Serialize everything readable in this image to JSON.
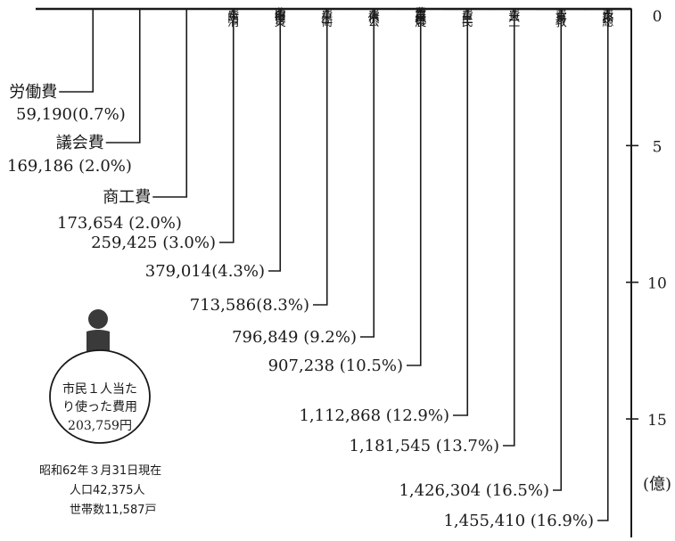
{
  "chart_data": {
    "type": "bar",
    "orientation": "vertical-hanging",
    "unit": "(億)",
    "ylim": [
      0,
      15
    ],
    "ticks": [
      0,
      5,
      10,
      15
    ],
    "bar_color": "#e6e6e6",
    "categories": [
      {
        "name": "労働費",
        "vertical_label": "",
        "value": 59190,
        "label": "59,190(0.7%)",
        "leader_label": "労働費"
      },
      {
        "name": "議会費",
        "vertical_label": "",
        "value": 169186,
        "label": "169,186 (2.0%)",
        "leader_label": "議会費"
      },
      {
        "name": "商工費",
        "vertical_label": "",
        "value": 173654,
        "label": "173,654 (2.0%)",
        "leader_label": "商工費"
      },
      {
        "name": "消防費",
        "vertical_label": "消防費",
        "value": 259425,
        "label": "259,425 (3.0%)",
        "leader_label": ""
      },
      {
        "name": "災害復旧費",
        "vertical_label": "災害復旧費",
        "value": 379014,
        "label": "379,014(4.3%)",
        "leader_label": ""
      },
      {
        "name": "衛生費",
        "vertical_label": "衛生費",
        "value": 713586,
        "label": "713,586(8.3%)",
        "leader_label": ""
      },
      {
        "name": "公債費",
        "vertical_label": "公債費",
        "value": 796849,
        "label": "796,849 (9.2%)",
        "leader_label": ""
      },
      {
        "name": "農林水産業費",
        "vertical_label": "農林水産業費",
        "value": 907238,
        "label": "907,238 (10.5%)",
        "leader_label": ""
      },
      {
        "name": "民生費",
        "vertical_label": "民生費",
        "value": 1112868,
        "label": "1,112,868 (12.9%)",
        "leader_label": ""
      },
      {
        "name": "土木費",
        "vertical_label": "土木費",
        "value": 1181545,
        "label": "1,181,545 (13.7%)",
        "leader_label": ""
      },
      {
        "name": "教育費",
        "vertical_label": "教育費",
        "value": 1426304,
        "label": "1,426,304 (16.5%)",
        "leader_label": ""
      },
      {
        "name": "総務費",
        "vertical_label": "総務費",
        "value": 1455410,
        "label": "1,455,410 (16.9%)",
        "leader_label": ""
      }
    ]
  },
  "per_capita": {
    "line1": "市民１人当た",
    "line2": "り使った費用",
    "line3": "203,759円"
  },
  "footnote": {
    "date": "昭和62年３月31日現在",
    "population": "人口42,375人",
    "households": "世帯数11,587戸"
  }
}
